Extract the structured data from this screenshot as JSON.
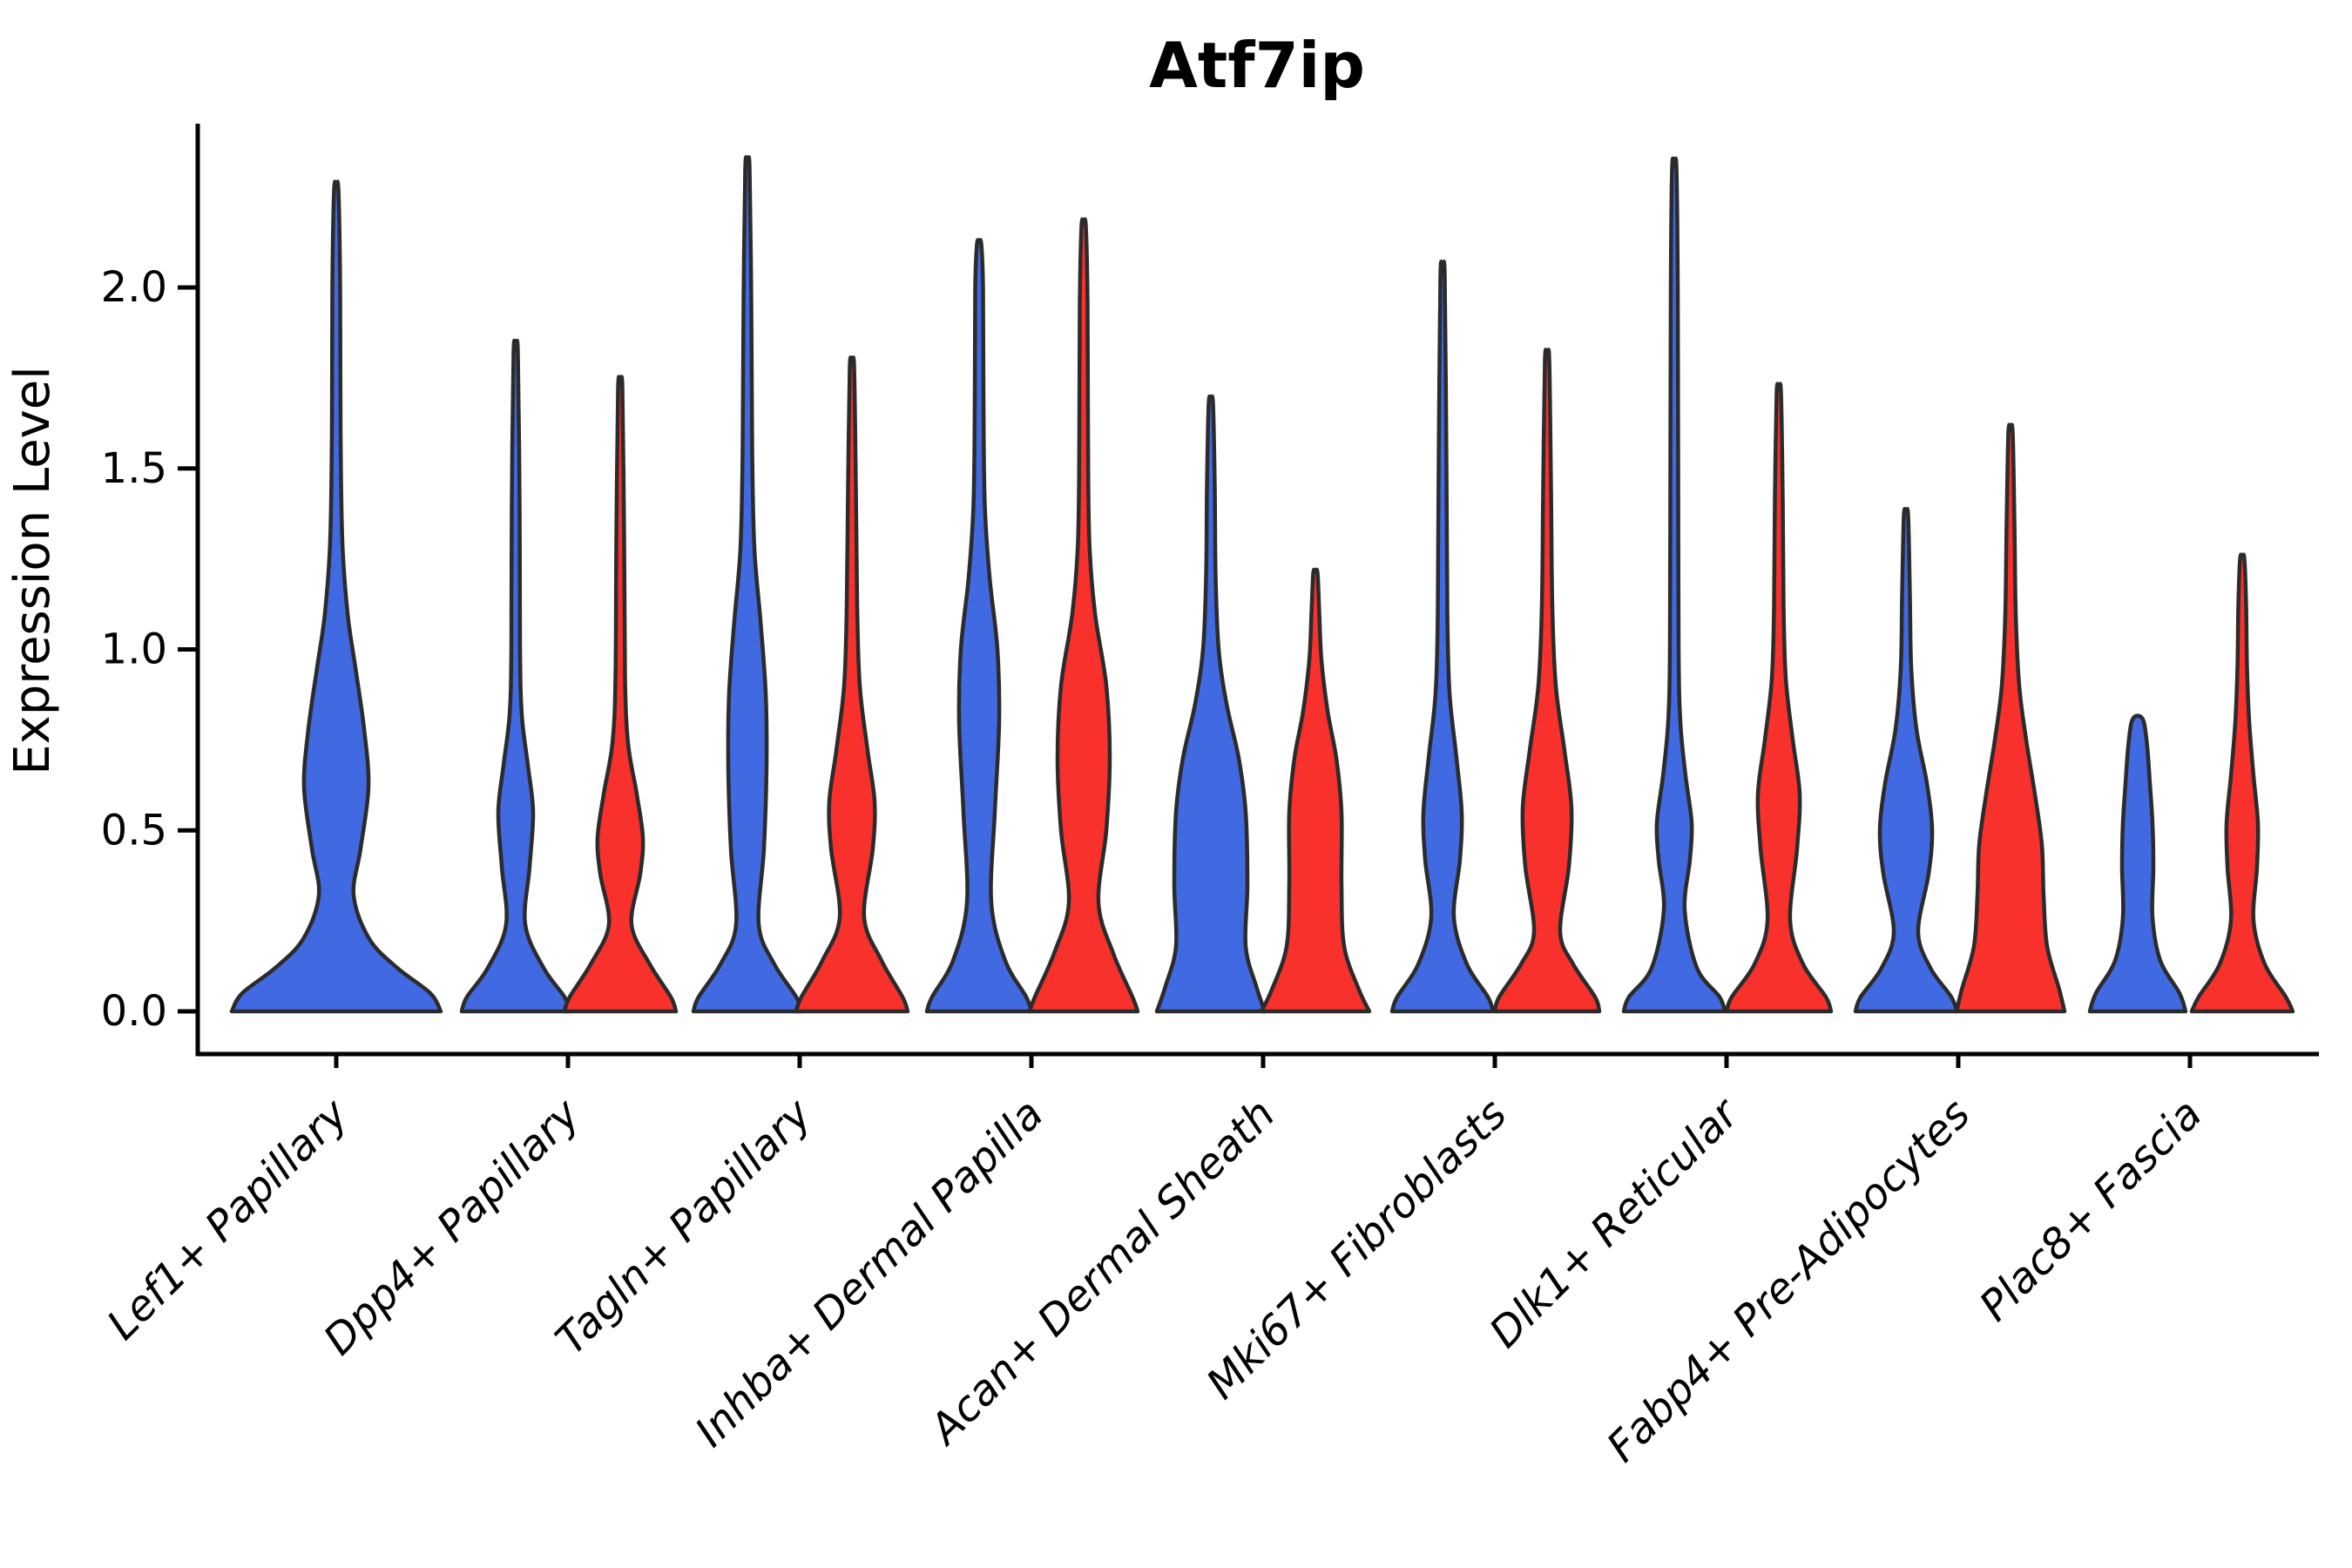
{
  "title": "Atf7ip",
  "axes": {
    "ylabel": "Expression Level",
    "ytick_labels": [
      "2.0",
      "1.5",
      "1.0",
      "0.5",
      "0.0"
    ],
    "ytick_values": [
      2.0,
      1.5,
      1.0,
      0.5,
      0.0
    ],
    "categories": [
      "Lef1+ Papillary",
      "Dpp4+ Papillary",
      "Tagln+ Papillary",
      "Inhba+ Dermal Papilla",
      "Acan+ Dermal Sheath",
      "Mki67+ Fibroblasts",
      "Dlk1+ Reticular",
      "Fabp4+ Pre-Adipocytes",
      "Plac8+ Fascia"
    ]
  },
  "colors": {
    "split_blue": "#4169E1",
    "split_red": "#F8312D",
    "violin_outline": "#2b2b2b",
    "axis": "#000000",
    "background": "#ffffff"
  },
  "chart_data": {
    "type": "violin",
    "title": "Atf7ip",
    "xlabel": "",
    "ylabel": "Expression Level",
    "ylim": [
      0,
      2.45
    ],
    "yticks": [
      0.0,
      0.5,
      1.0,
      1.5,
      2.0
    ],
    "grid": false,
    "legend": "none",
    "split": [
      "blue",
      "red"
    ],
    "categories": [
      "Lef1+ Papillary",
      "Dpp4+ Papillary",
      "Tagln+ Papillary",
      "Inhba+ Dermal Papilla",
      "Acan+ Dermal Sheath",
      "Mki67+ Fibroblasts",
      "Dlk1+ Reticular",
      "Fabp4+ Pre-Adipocytes",
      "Plac8+ Fascia"
    ],
    "violins": [
      {
        "category": "Lef1+ Papillary",
        "split": "blue",
        "single": true,
        "max_expression": 2.27,
        "profile": [
          [
            0,
            120
          ],
          [
            0.05,
            108
          ],
          [
            0.12,
            70
          ],
          [
            0.2,
            38
          ],
          [
            0.32,
            20
          ],
          [
            0.45,
            28
          ],
          [
            0.62,
            37
          ],
          [
            0.78,
            32
          ],
          [
            0.95,
            22
          ],
          [
            1.1,
            13
          ],
          [
            1.3,
            7
          ],
          [
            1.6,
            5
          ],
          [
            2.0,
            4.5
          ],
          [
            2.27,
            2.5
          ]
        ]
      },
      {
        "category": "Dpp4+ Papillary",
        "split": "blue",
        "single": false,
        "max_expression": 1.82,
        "profile": [
          [
            0,
            62
          ],
          [
            0.04,
            56
          ],
          [
            0.12,
            32
          ],
          [
            0.24,
            11
          ],
          [
            0.4,
            16
          ],
          [
            0.55,
            20
          ],
          [
            0.68,
            14
          ],
          [
            0.82,
            7
          ],
          [
            1.0,
            5
          ],
          [
            1.4,
            4.5
          ],
          [
            1.82,
            2.5
          ]
        ]
      },
      {
        "category": "Dpp4+ Papillary",
        "split": "red",
        "single": false,
        "max_expression": 1.72,
        "profile": [
          [
            0,
            64
          ],
          [
            0.04,
            58
          ],
          [
            0.13,
            34
          ],
          [
            0.24,
            13
          ],
          [
            0.38,
            23
          ],
          [
            0.48,
            26
          ],
          [
            0.6,
            19
          ],
          [
            0.74,
            9
          ],
          [
            0.92,
            5.5
          ],
          [
            1.3,
            4.5
          ],
          [
            1.72,
            2.5
          ]
        ]
      },
      {
        "category": "Tagln+ Papillary",
        "split": "blue",
        "single": false,
        "max_expression": 2.33,
        "profile": [
          [
            0,
            62
          ],
          [
            0.04,
            56
          ],
          [
            0.13,
            31
          ],
          [
            0.24,
            13
          ],
          [
            0.45,
            19
          ],
          [
            0.68,
            22
          ],
          [
            0.88,
            21
          ],
          [
            1.08,
            15
          ],
          [
            1.28,
            8
          ],
          [
            1.55,
            5.5
          ],
          [
            1.95,
            4.5
          ],
          [
            2.33,
            2.5
          ]
        ]
      },
      {
        "category": "Tagln+ Papillary",
        "split": "red",
        "single": false,
        "max_expression": 1.78,
        "profile": [
          [
            0,
            64
          ],
          [
            0.04,
            58
          ],
          [
            0.14,
            34
          ],
          [
            0.26,
            14
          ],
          [
            0.45,
            24
          ],
          [
            0.58,
            26
          ],
          [
            0.72,
            18
          ],
          [
            0.9,
            9
          ],
          [
            1.12,
            6
          ],
          [
            1.45,
            4.5
          ],
          [
            1.78,
            2.5
          ]
        ]
      },
      {
        "category": "Inhba+ Dermal Papilla",
        "split": "blue",
        "single": false,
        "max_expression": 2.12,
        "profile": [
          [
            0,
            60
          ],
          [
            0.04,
            54
          ],
          [
            0.14,
            30
          ],
          [
            0.3,
            14
          ],
          [
            0.55,
            18
          ],
          [
            0.8,
            23
          ],
          [
            1.0,
            21
          ],
          [
            1.2,
            12
          ],
          [
            1.4,
            6.5
          ],
          [
            1.7,
            5
          ],
          [
            2.0,
            4.5
          ],
          [
            2.12,
            2.5
          ]
        ]
      },
      {
        "category": "Inhba+ Dermal Papilla",
        "split": "red",
        "single": false,
        "max_expression": 2.17,
        "profile": [
          [
            0,
            62
          ],
          [
            0.04,
            56
          ],
          [
            0.16,
            34
          ],
          [
            0.3,
            17
          ],
          [
            0.5,
            26
          ],
          [
            0.7,
            30
          ],
          [
            0.9,
            26
          ],
          [
            1.1,
            13
          ],
          [
            1.3,
            6.5
          ],
          [
            1.6,
            5
          ],
          [
            1.95,
            4.5
          ],
          [
            2.17,
            2.5
          ]
        ]
      },
      {
        "category": "Acan+ Dermal Sheath",
        "split": "blue",
        "single": false,
        "max_expression": 1.68,
        "profile": [
          [
            0,
            62
          ],
          [
            0.07,
            52
          ],
          [
            0.18,
            40
          ],
          [
            0.35,
            42
          ],
          [
            0.55,
            40
          ],
          [
            0.7,
            32
          ],
          [
            0.85,
            18
          ],
          [
            1.0,
            9
          ],
          [
            1.2,
            5.5
          ],
          [
            1.45,
            4.5
          ],
          [
            1.68,
            2.5
          ]
        ]
      },
      {
        "category": "Acan+ Dermal Sheath",
        "split": "red",
        "single": false,
        "max_expression": 1.21,
        "profile": [
          [
            0,
            62
          ],
          [
            0.06,
            50
          ],
          [
            0.18,
            33
          ],
          [
            0.35,
            30
          ],
          [
            0.55,
            30
          ],
          [
            0.7,
            24
          ],
          [
            0.83,
            14
          ],
          [
            0.97,
            7
          ],
          [
            1.1,
            4.5
          ],
          [
            1.21,
            2.5
          ]
        ]
      },
      {
        "category": "Mki67+ Fibroblasts",
        "split": "blue",
        "single": false,
        "max_expression": 2.03,
        "profile": [
          [
            0,
            58
          ],
          [
            0.04,
            52
          ],
          [
            0.13,
            28
          ],
          [
            0.26,
            13
          ],
          [
            0.42,
            20
          ],
          [
            0.55,
            22
          ],
          [
            0.7,
            16
          ],
          [
            0.88,
            8
          ],
          [
            1.1,
            5.5
          ],
          [
            1.5,
            4.5
          ],
          [
            2.03,
            2.5
          ]
        ]
      },
      {
        "category": "Mki67+ Fibroblasts",
        "split": "red",
        "single": false,
        "max_expression": 1.8,
        "profile": [
          [
            0,
            60
          ],
          [
            0.04,
            55
          ],
          [
            0.13,
            30
          ],
          [
            0.22,
            15
          ],
          [
            0.4,
            25
          ],
          [
            0.56,
            28
          ],
          [
            0.72,
            20
          ],
          [
            0.9,
            10
          ],
          [
            1.12,
            6
          ],
          [
            1.45,
            4.5
          ],
          [
            1.8,
            2.5
          ]
        ]
      },
      {
        "category": "Dlk1+ Reticular",
        "split": "blue",
        "single": false,
        "max_expression": 2.33,
        "profile": [
          [
            0,
            58
          ],
          [
            0.04,
            52
          ],
          [
            0.12,
            26
          ],
          [
            0.28,
            12
          ],
          [
            0.42,
            18
          ],
          [
            0.52,
            20
          ],
          [
            0.65,
            13
          ],
          [
            0.8,
            7
          ],
          [
            1.0,
            5
          ],
          [
            1.5,
            4.5
          ],
          [
            2.0,
            4
          ],
          [
            2.33,
            2.5
          ]
        ]
      },
      {
        "category": "Dlk1+ Reticular",
        "split": "red",
        "single": false,
        "max_expression": 1.71,
        "profile": [
          [
            0,
            60
          ],
          [
            0.04,
            54
          ],
          [
            0.13,
            28
          ],
          [
            0.25,
            13
          ],
          [
            0.45,
            21
          ],
          [
            0.6,
            24
          ],
          [
            0.75,
            16
          ],
          [
            0.92,
            8
          ],
          [
            1.12,
            5.5
          ],
          [
            1.42,
            4.5
          ],
          [
            1.71,
            2.5
          ]
        ]
      },
      {
        "category": "Fabp4+ Pre-Adipocytes",
        "split": "blue",
        "single": false,
        "max_expression": 1.37,
        "profile": [
          [
            0,
            58
          ],
          [
            0.04,
            52
          ],
          [
            0.12,
            28
          ],
          [
            0.22,
            14
          ],
          [
            0.38,
            26
          ],
          [
            0.5,
            30
          ],
          [
            0.63,
            24
          ],
          [
            0.78,
            12
          ],
          [
            0.95,
            6
          ],
          [
            1.15,
            4.5
          ],
          [
            1.37,
            2.5
          ]
        ]
      },
      {
        "category": "Fabp4+ Pre-Adipocytes",
        "split": "red",
        "single": false,
        "max_expression": 1.6,
        "profile": [
          [
            0,
            62
          ],
          [
            0.06,
            56
          ],
          [
            0.18,
            42
          ],
          [
            0.32,
            38
          ],
          [
            0.46,
            36
          ],
          [
            0.6,
            28
          ],
          [
            0.75,
            18
          ],
          [
            0.9,
            10
          ],
          [
            1.1,
            6
          ],
          [
            1.35,
            4.5
          ],
          [
            1.6,
            2.5
          ]
        ]
      },
      {
        "category": "Plac8+ Fascia",
        "split": "blue",
        "single": false,
        "max_expression": 0.8,
        "profile": [
          [
            0,
            55
          ],
          [
            0.05,
            48
          ],
          [
            0.14,
            26
          ],
          [
            0.26,
            17
          ],
          [
            0.4,
            18
          ],
          [
            0.52,
            17
          ],
          [
            0.63,
            14
          ],
          [
            0.73,
            11
          ],
          [
            0.8,
            7
          ]
        ]
      },
      {
        "category": "Plac8+ Fascia",
        "split": "red",
        "single": false,
        "max_expression": 1.25,
        "profile": [
          [
            0,
            58
          ],
          [
            0.04,
            50
          ],
          [
            0.13,
            26
          ],
          [
            0.25,
            13
          ],
          [
            0.4,
            17
          ],
          [
            0.52,
            18
          ],
          [
            0.65,
            13
          ],
          [
            0.8,
            8
          ],
          [
            0.95,
            5.5
          ],
          [
            1.12,
            4.5
          ],
          [
            1.25,
            2.5
          ]
        ]
      }
    ]
  }
}
